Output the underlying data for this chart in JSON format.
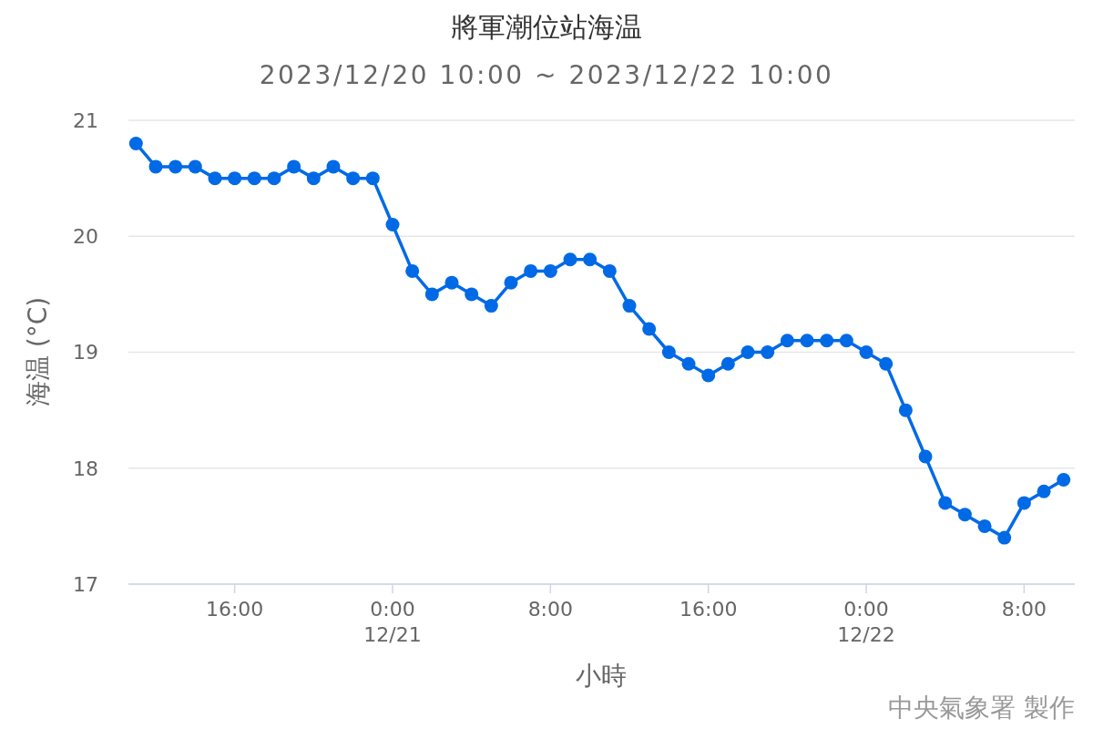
{
  "chart_data": {
    "type": "line",
    "title": "將軍潮位站海温",
    "subtitle": "2023/12/20 10:00 ~ 2023/12/22 10:00",
    "xlabel": "小時",
    "ylabel": "海温 (°C)",
    "annotations": [
      "中央氣象署 製作"
    ],
    "x": [
      "2023-12-20T11:00",
      "2023-12-20T12:00",
      "2023-12-20T13:00",
      "2023-12-20T14:00",
      "2023-12-20T15:00",
      "2023-12-20T16:00",
      "2023-12-20T17:00",
      "2023-12-20T18:00",
      "2023-12-20T19:00",
      "2023-12-20T20:00",
      "2023-12-20T21:00",
      "2023-12-20T22:00",
      "2023-12-20T23:00",
      "2023-12-21T00:00",
      "2023-12-21T01:00",
      "2023-12-21T02:00",
      "2023-12-21T03:00",
      "2023-12-21T04:00",
      "2023-12-21T05:00",
      "2023-12-21T06:00",
      "2023-12-21T07:00",
      "2023-12-21T08:00",
      "2023-12-21T09:00",
      "2023-12-21T10:00",
      "2023-12-21T11:00",
      "2023-12-21T12:00",
      "2023-12-21T13:00",
      "2023-12-21T14:00",
      "2023-12-21T15:00",
      "2023-12-21T16:00",
      "2023-12-21T17:00",
      "2023-12-21T18:00",
      "2023-12-21T19:00",
      "2023-12-21T20:00",
      "2023-12-21T21:00",
      "2023-12-21T22:00",
      "2023-12-21T23:00",
      "2023-12-22T00:00",
      "2023-12-22T01:00",
      "2023-12-22T02:00",
      "2023-12-22T03:00",
      "2023-12-22T04:00",
      "2023-12-22T05:00",
      "2023-12-22T06:00",
      "2023-12-22T07:00",
      "2023-12-22T08:00",
      "2023-12-22T09:00",
      "2023-12-22T10:00"
    ],
    "series": [
      {
        "color": "#006ae6",
        "values": [
          20.8,
          20.6,
          20.6,
          20.6,
          20.5,
          20.5,
          20.5,
          20.5,
          20.6,
          20.5,
          20.6,
          20.5,
          20.5,
          20.1,
          19.7,
          19.5,
          19.6,
          19.5,
          19.4,
          19.6,
          19.7,
          19.7,
          19.8,
          19.8,
          19.7,
          19.4,
          19.2,
          19.0,
          18.9,
          18.8,
          18.9,
          19.0,
          19.0,
          19.1,
          19.1,
          19.1,
          19.1,
          19.0,
          18.9,
          18.5,
          18.1,
          17.7,
          17.6,
          17.5,
          17.4,
          17.7,
          17.8,
          17.9
        ]
      }
    ],
    "xlim": [
      "2023-12-20T10:37",
      "2023-12-22T10:34"
    ],
    "xticks": [
      {
        "value": "2023-12-20T16:00",
        "label": "16:00"
      },
      {
        "value": "2023-12-21T00:00",
        "label": "0:00\n12/21"
      },
      {
        "value": "2023-12-21T08:00",
        "label": "8:00"
      },
      {
        "value": "2023-12-21T16:00",
        "label": "16:00"
      },
      {
        "value": "2023-12-22T00:00",
        "label": "0:00\n12/22"
      },
      {
        "value": "2023-12-22T08:00",
        "label": "8:00"
      }
    ],
    "ylim": [
      17,
      21
    ],
    "yticks": [
      17,
      18,
      19,
      20,
      21
    ],
    "grid": "y",
    "marker": "circle",
    "line_style": "solid"
  }
}
